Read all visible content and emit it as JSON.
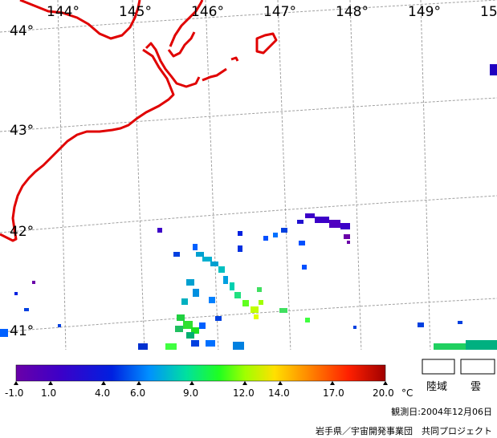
{
  "map": {
    "lon_labels": [
      "144°",
      "145°",
      "146°",
      "147°",
      "148°",
      "149°",
      "15"
    ],
    "lat_labels": [
      "44°",
      "43°",
      "42°",
      "41°"
    ]
  },
  "colorbar": {
    "ticks": [
      "-1.0",
      "1.0",
      "4.0",
      "6.0",
      "9.0",
      "12.0",
      "14.0",
      "17.0",
      "20.0"
    ],
    "unit": "°C",
    "range": [
      -1.0,
      20.0
    ]
  },
  "legend": {
    "land_label": "陸域",
    "cloud_label": "雲"
  },
  "footer": {
    "observation_date": "観測日:2004年12月06日",
    "credit": "岩手県／宇宙開発事業団　共同プロジェクト"
  },
  "colors": {
    "coastline": "#e00000",
    "grid": "#a0a0a0"
  }
}
